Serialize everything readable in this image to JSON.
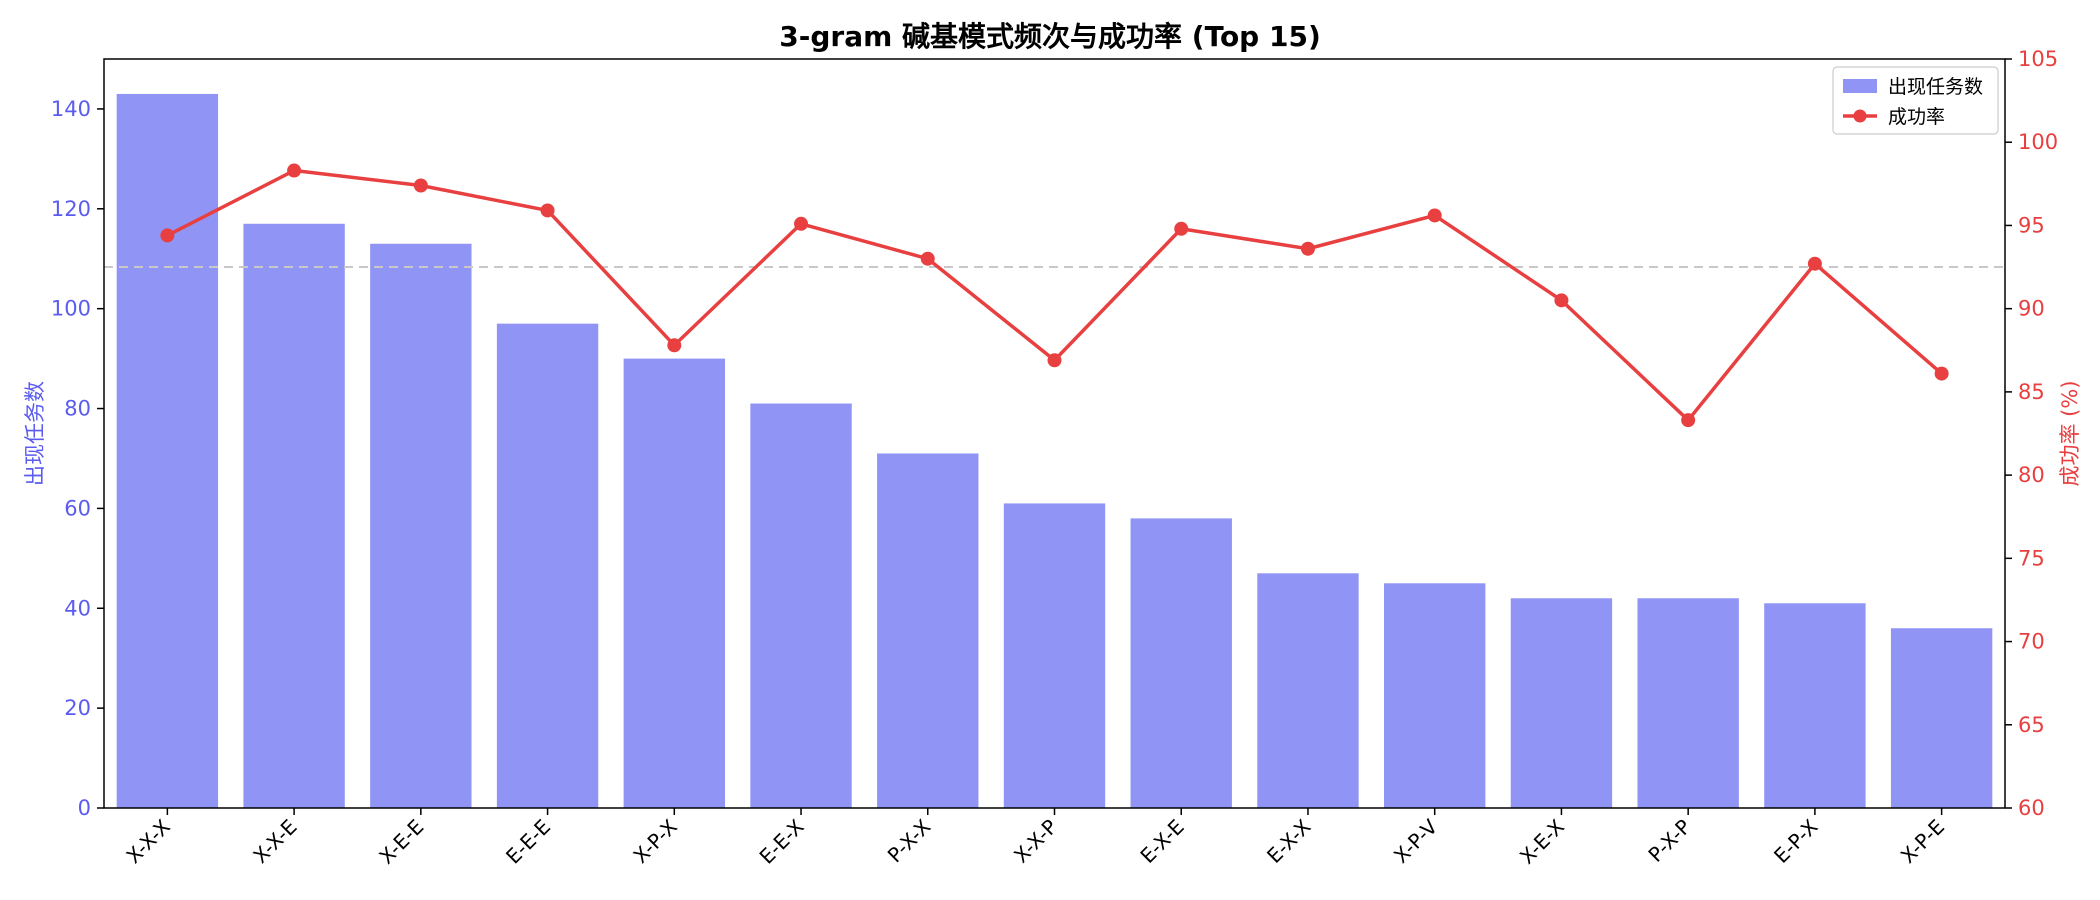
{
  "chart_data": {
    "type": "bar",
    "title": "3-gram 碱基模式频次与成功率 (Top 15)",
    "categories": [
      "X-X-X",
      "X-X-E",
      "X-E-E",
      "E-E-E",
      "X-P-X",
      "E-E-X",
      "P-X-X",
      "X-X-P",
      "E-X-E",
      "E-X-X",
      "X-P-V",
      "X-E-X",
      "P-X-P",
      "E-P-X",
      "X-P-E"
    ],
    "series": [
      {
        "name": "出现任务数",
        "type": "bar",
        "axis": "left",
        "color": "#9095f5",
        "values": [
          143,
          117,
          113,
          97,
          90,
          81,
          71,
          61,
          58,
          47,
          45,
          42,
          42,
          41,
          36
        ]
      },
      {
        "name": "成功率",
        "type": "line",
        "axis": "right",
        "color": "#e84040",
        "values": [
          94.4,
          98.3,
          97.4,
          95.9,
          87.8,
          95.1,
          93.0,
          86.9,
          94.8,
          93.6,
          95.6,
          90.5,
          83.3,
          92.7,
          86.1
        ]
      }
    ],
    "ylabel_left": "出现任务数",
    "ylabel_right": "成功率 (%)",
    "ylim_left": [
      0,
      150
    ],
    "ylim_right": [
      60,
      105
    ],
    "yticks_left": [
      0,
      20,
      40,
      60,
      80,
      100,
      120,
      140
    ],
    "yticks_right": [
      60,
      65,
      70,
      75,
      80,
      85,
      90,
      95,
      100,
      105
    ],
    "reference_line": {
      "axis": "right",
      "value": 92.5,
      "style": "dashed",
      "color": "#c8c8c8"
    },
    "grid": false,
    "legend_position": "top-right",
    "left_axis_color": "#5b5bf0",
    "right_axis_color": "#e84040"
  }
}
